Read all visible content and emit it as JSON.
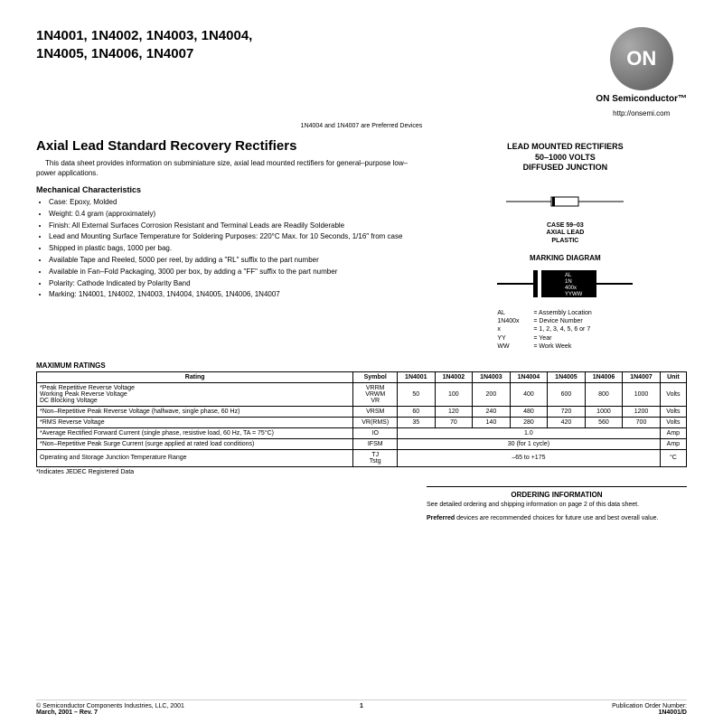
{
  "header": {
    "parts": "1N4001, 1N4002, 1N4003, 1N4004, 1N4005, 1N4006, 1N4007",
    "preferred_note": "1N4004 and 1N4007 are Preferred Devices",
    "logo_text": "ON",
    "company": "ON Semiconductor™",
    "url": "http://onsemi.com"
  },
  "title": "Axial Lead Standard Recovery Rectifiers",
  "intro": "This data sheet provides information on subminiature size, axial lead mounted rectifiers for general–purpose low–power applications.",
  "mech_head": "Mechanical Characteristics",
  "mech": [
    "Case: Epoxy, Molded",
    "Weight: 0.4 gram (approximately)",
    "Finish: All External Surfaces Corrosion Resistant and Terminal Leads are Readily Solderable",
    "Lead and Mounting Surface Temperature for Soldering Purposes: 220°C Max. for 10 Seconds, 1/16″ from case",
    "Shipped in plastic bags, 1000 per bag.",
    "Available Tape and Reeled, 5000 per reel, by adding a \"RL\" suffix to the part number",
    "Available in Fan–Fold Packaging, 3000 per box, by adding a \"FF\" suffix to the part number",
    "Polarity: Cathode Indicated by Polarity Band",
    "Marking: 1N4001, 1N4002, 1N4003, 1N4004, 1N4005, 1N4006, 1N4007"
  ],
  "right": {
    "head1": "LEAD MOUNTED RECTIFIERS",
    "head2": "50–1000 VOLTS",
    "head3": "DIFFUSED JUNCTION",
    "case": "CASE 59–03",
    "case2": "AXIAL LEAD",
    "case3": "PLASTIC",
    "mark_head": "MARKING DIAGRAM",
    "mark_lines": [
      "AL",
      "1N",
      "400x",
      "YYWW"
    ],
    "legend": [
      {
        "k": "AL",
        "v": "= Assembly Location"
      },
      {
        "k": "1N400x",
        "v": "= Device Number"
      },
      {
        "k": "x",
        "v": "= 1, 2, 3, 4, 5, 6 or 7"
      },
      {
        "k": "YY",
        "v": "= Year"
      },
      {
        "k": "WW",
        "v": "= Work Week"
      }
    ]
  },
  "table": {
    "title": "MAXIMUM RATINGS",
    "columns": [
      "Rating",
      "Symbol",
      "1N4001",
      "1N4002",
      "1N4003",
      "1N4004",
      "1N4005",
      "1N4006",
      "1N4007",
      "Unit"
    ],
    "rows": [
      {
        "rating": "*Peak Repetitive Reverse Voltage\nWorking Peak Reverse Voltage\nDC Blocking Voltage",
        "symbol": "VRRM\nVRWM\nVR",
        "vals": [
          "50",
          "100",
          "200",
          "400",
          "600",
          "800",
          "1000"
        ],
        "unit": "Volts"
      },
      {
        "rating": "*Non–Repetitive Peak Reverse Voltage (halfwave, single phase, 60 Hz)",
        "symbol": "VRSM",
        "vals": [
          "60",
          "120",
          "240",
          "480",
          "720",
          "1000",
          "1200"
        ],
        "unit": "Volts"
      },
      {
        "rating": "*RMS Reverse Voltage",
        "symbol": "VR(RMS)",
        "vals": [
          "35",
          "70",
          "140",
          "280",
          "420",
          "560",
          "700"
        ],
        "unit": "Volts"
      },
      {
        "rating": "*Average Rectified Forward Current (single phase, resistive load, 60 Hz, TA = 75°C)",
        "symbol": "IO",
        "span": "1.0",
        "unit": "Amp"
      },
      {
        "rating": "*Non–Repetitive Peak Surge Current (surge applied at rated load conditions)",
        "symbol": "IFSM",
        "span": "30 (for 1 cycle)",
        "unit": "Amp"
      },
      {
        "rating": "Operating and Storage Junction Temperature Range",
        "symbol": "TJ\nTstg",
        "span": "–65 to +175",
        "unit": "°C"
      }
    ],
    "footnote": "*Indicates JEDEC Registered Data"
  },
  "ordering": {
    "head": "ORDERING INFORMATION",
    "text1": "See detailed ordering and shipping information on page 2 of this data sheet.",
    "text2": "Preferred devices are recommended choices for future use and best overall value."
  },
  "footer": {
    "left1": "© Semiconductor Components Industries, LLC, 2001",
    "left2": "March, 2001 – Rev. 7",
    "mid": "1",
    "right1": "Publication Order Number:",
    "right2": "1N4001/D"
  },
  "colors": {
    "text": "#000000",
    "border": "#000000",
    "logo_bg1": "#aaaaaa",
    "logo_bg2": "#555555"
  }
}
